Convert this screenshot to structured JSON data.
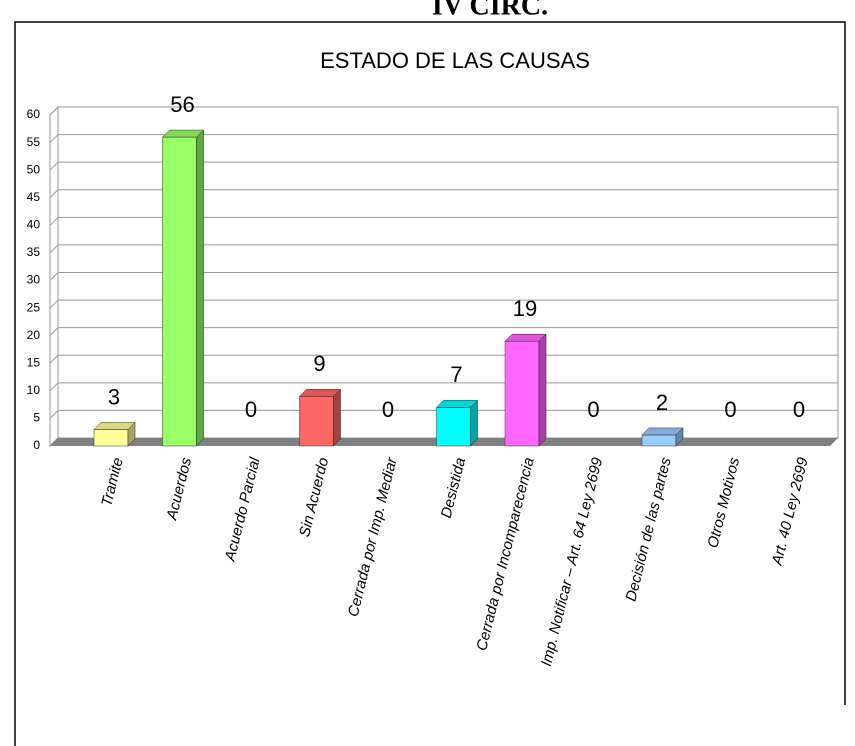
{
  "header": {
    "text": "IV CIRC."
  },
  "chart_data": {
    "type": "bar3d",
    "title": "ESTADO DE LAS CAUSAS",
    "categories": [
      "Tramite",
      "Acuerdos",
      "Acuerdo Parcial",
      "Sin Acuerdo",
      "Cerrada por Imp. Mediar",
      "Desistida",
      "Cerrada por Incomparecencia",
      "Imp. Notificar – Art. 64 Ley 2699",
      "Decisión de las partes",
      "Otros Motivos",
      "Art. 40 Ley 2699"
    ],
    "values": [
      3,
      56,
      0,
      9,
      0,
      7,
      19,
      0,
      2,
      0,
      0
    ],
    "colors": [
      "#ffff99",
      "#99ff66",
      "#cccccc",
      "#ff6666",
      "#cccccc",
      "#00ffff",
      "#ff66ff",
      "#cccccc",
      "#99ccff",
      "#cccccc",
      "#cccccc"
    ],
    "ylim": [
      0,
      60
    ],
    "yticks": [
      0,
      5,
      10,
      15,
      20,
      25,
      30,
      35,
      40,
      45,
      50,
      55,
      60
    ],
    "grid": true
  }
}
